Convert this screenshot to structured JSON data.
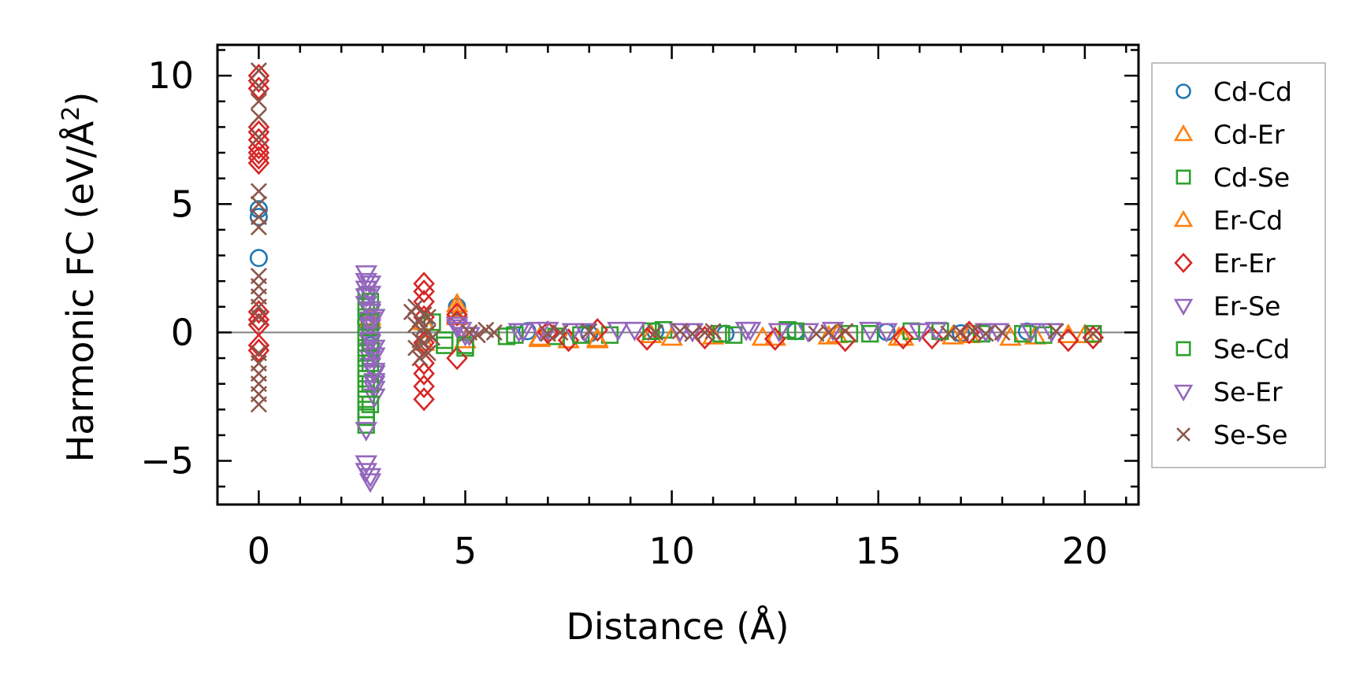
{
  "chart_data": {
    "type": "scatter",
    "title": "",
    "xlabel": "Distance (Å)",
    "ylabel_main": "Harmonic FC (eV/Å",
    "ylabel_sup": "2",
    "ylabel_close": ")",
    "xlim": [
      -1.0,
      21.3
    ],
    "ylim": [
      -6.7,
      11.2
    ],
    "xticks": [
      0,
      5,
      10,
      15,
      20
    ],
    "xtick_labels": [
      "0",
      "5",
      "10",
      "15",
      "20"
    ],
    "yticks": [
      -5,
      0,
      5,
      10
    ],
    "ytick_labels": [
      "−5",
      "0",
      "5",
      "10"
    ],
    "reference_line_y": 0,
    "grid": false,
    "legend_position": "outside-right",
    "series": [
      {
        "name": "Cd-Cd",
        "marker": "circle",
        "color": "#1f77b4",
        "x": [
          0,
          0,
          0,
          2.6,
          2.7,
          4.0,
          4.8,
          6.5,
          8.0,
          9.6,
          11.3,
          13.0,
          15.2,
          17.0,
          18.6
        ],
        "y": [
          2.9,
          4.5,
          4.8,
          0.4,
          -0.5,
          0.3,
          1.0,
          0.05,
          -0.05,
          0.05,
          -0.05,
          0.05,
          0.02,
          -0.03,
          0.04
        ]
      },
      {
        "name": "Cd-Er",
        "marker": "triangle-up",
        "color": "#ff7f0e",
        "x": [
          2.7,
          4.0,
          4.8,
          4.8,
          5.0,
          6.8,
          7.5,
          8.2,
          9.5,
          11.0,
          12.5,
          14.0,
          15.5,
          17.2,
          18.8,
          20.0
        ],
        "y": [
          0.6,
          0.4,
          1.1,
          0.6,
          -0.3,
          -0.2,
          -0.3,
          -0.25,
          -0.1,
          -0.15,
          -0.2,
          -0.1,
          -0.2,
          -0.1,
          -0.15,
          -0.1
        ]
      },
      {
        "name": "Cd-Se",
        "marker": "square",
        "color": "#2ca02c",
        "x": [
          2.6,
          2.6,
          2.6,
          2.6,
          2.6,
          2.6,
          2.6,
          2.6,
          2.6,
          2.6,
          2.6,
          2.6,
          2.6,
          2.6,
          4.2,
          4.5,
          5.0,
          6.0,
          7.2,
          8.5,
          9.8,
          11.5,
          12.8,
          14.3,
          15.8,
          17.5,
          19.0,
          20.2
        ],
        "y": [
          1.4,
          1.0,
          0.6,
          0.2,
          -0.2,
          -0.6,
          -1.0,
          -1.4,
          -1.8,
          -2.2,
          -2.6,
          -3.0,
          -3.3,
          -3.6,
          0.4,
          -0.5,
          -0.6,
          -0.15,
          -0.15,
          -0.1,
          0.1,
          -0.1,
          0.1,
          -0.05,
          0.05,
          -0.05,
          -0.1,
          -0.05
        ]
      },
      {
        "name": "Er-Cd",
        "marker": "triangle-up",
        "color": "#ff7f0e",
        "x": [
          2.7,
          4.0,
          4.8,
          6.8,
          8.2,
          10.0,
          12.2,
          13.8,
          15.6,
          16.8,
          18.2,
          19.6
        ],
        "y": [
          0.5,
          -0.4,
          0.9,
          -0.25,
          -0.3,
          -0.2,
          -0.2,
          -0.15,
          -0.2,
          -0.15,
          -0.2,
          -0.1
        ]
      },
      {
        "name": "Er-Er",
        "marker": "diamond",
        "color": "#d62728",
        "x": [
          0,
          0,
          0,
          0,
          0,
          0,
          0,
          0,
          0,
          0,
          0,
          0,
          0,
          0,
          0,
          4.0,
          4.0,
          4.0,
          4.0,
          4.0,
          4.0,
          4.0,
          4.0,
          4.0,
          4.8,
          4.8,
          4.8,
          7.0,
          7.5,
          8.2,
          9.4,
          10.8,
          12.5,
          14.2,
          15.6,
          16.3,
          17.2,
          19.6,
          20.2
        ],
        "y": [
          9.8,
          10.0,
          9.5,
          8.0,
          7.8,
          7.5,
          7.2,
          7.0,
          6.8,
          6.6,
          0.5,
          0.3,
          -0.5,
          -0.7,
          0.8,
          1.9,
          1.6,
          1.2,
          0.6,
          -0.4,
          -1.2,
          -1.6,
          -2.1,
          -2.6,
          0.7,
          0.4,
          -1.0,
          0.0,
          -0.3,
          0.1,
          -0.25,
          -0.2,
          -0.25,
          -0.3,
          -0.2,
          -0.2,
          0.0,
          -0.3,
          -0.2
        ]
      },
      {
        "name": "Er-Se",
        "marker": "triangle-down",
        "color": "#9467bd",
        "x": [
          2.6,
          2.6,
          2.6,
          2.6,
          2.6,
          2.7,
          2.7,
          2.7,
          2.7,
          2.7,
          2.7,
          2.7,
          2.7,
          2.8,
          2.8,
          2.8,
          2.8,
          4.8,
          4.9,
          5.0,
          6.3,
          6.8,
          7.6,
          8.7,
          10.2,
          11.8,
          13.3,
          14.8,
          16.0,
          17.6,
          19.2
        ],
        "y": [
          2.3,
          2.0,
          1.7,
          1.4,
          1.1,
          0.8,
          0.5,
          0.2,
          -0.1,
          -0.4,
          -0.7,
          -1.0,
          -1.3,
          -1.6,
          -1.9,
          -2.2,
          -2.5,
          0.3,
          0.1,
          -0.1,
          0.05,
          0.1,
          0.05,
          0.1,
          0.05,
          0.1,
          0.05,
          0.1,
          0.05,
          0.05,
          0.05
        ]
      },
      {
        "name": "Se-Cd",
        "marker": "square",
        "color": "#2ca02c",
        "x": [
          2.7,
          2.7,
          2.7,
          2.7,
          2.7,
          2.7,
          4.5,
          5.0,
          6.2,
          7.8,
          9.5,
          11.2,
          13.0,
          14.8,
          16.5,
          18.5
        ],
        "y": [
          1.2,
          0.4,
          -0.4,
          -1.2,
          -2.0,
          -2.8,
          -0.3,
          -0.5,
          -0.1,
          -0.1,
          0.05,
          -0.05,
          0.05,
          -0.05,
          0.05,
          -0.05
        ]
      },
      {
        "name": "Se-Er",
        "marker": "triangle-down",
        "color": "#9467bd",
        "x": [
          2.6,
          2.6,
          2.6,
          2.7,
          2.7,
          2.7,
          2.7,
          2.7,
          2.7,
          2.7,
          2.8,
          2.8,
          2.8,
          2.8,
          2.8,
          4.8,
          5.1,
          6.4,
          7.0,
          7.9,
          9.1,
          10.5,
          11.9,
          12.6,
          13.9,
          15.2,
          16.4,
          17.9,
          18.7
        ],
        "y": [
          -3.8,
          -5.1,
          -5.4,
          -5.6,
          -5.8,
          1.9,
          1.5,
          0.9,
          0.3,
          -0.3,
          -0.9,
          -1.5,
          -2.0,
          -0.6,
          0.6,
          0.2,
          -0.1,
          0.05,
          0.1,
          0.05,
          0.1,
          0.05,
          0.1,
          0.05,
          0.1,
          0.05,
          0.1,
          0.05,
          0.05
        ]
      },
      {
        "name": "Se-Se",
        "marker": "x",
        "color": "#8c564b",
        "x": [
          0,
          0,
          0,
          0,
          0,
          0,
          0,
          0,
          0,
          0,
          0,
          0,
          0,
          0,
          0,
          0,
          0,
          0,
          0,
          0,
          3.7,
          3.8,
          3.9,
          4.0,
          4.1,
          4.2,
          3.8,
          3.9,
          4.0,
          4.1,
          3.8,
          3.9,
          4.0,
          4.1,
          5.1,
          5.3,
          5.5,
          5.7,
          7.0,
          7.3,
          8.0,
          9.6,
          10.2,
          10.5,
          10.8,
          11.0,
          13.5,
          13.8,
          14.2,
          16.7,
          17.0,
          17.3,
          17.6,
          18.0,
          19.3,
          20.2
        ],
        "y": [
          10.2,
          9.6,
          9.0,
          8.4,
          7.6,
          5.5,
          5.0,
          4.5,
          4.1,
          2.2,
          1.8,
          1.4,
          1.0,
          0.6,
          -0.8,
          -1.2,
          -1.6,
          -2.0,
          -2.4,
          -2.8,
          0.8,
          1.0,
          0.5,
          0.2,
          0.6,
          -0.2,
          -0.6,
          -1.0,
          -0.4,
          0.0,
          0.3,
          -0.3,
          0.7,
          -0.8,
          0.0,
          -0.1,
          0.1,
          0.0,
          -0.05,
          0.0,
          0.05,
          0.0,
          0.05,
          -0.05,
          0.0,
          0.05,
          -0.05,
          0.0,
          0.05,
          -0.05,
          0.0,
          0.05,
          -0.05,
          0.0,
          0.05,
          -0.05
        ]
      }
    ]
  }
}
